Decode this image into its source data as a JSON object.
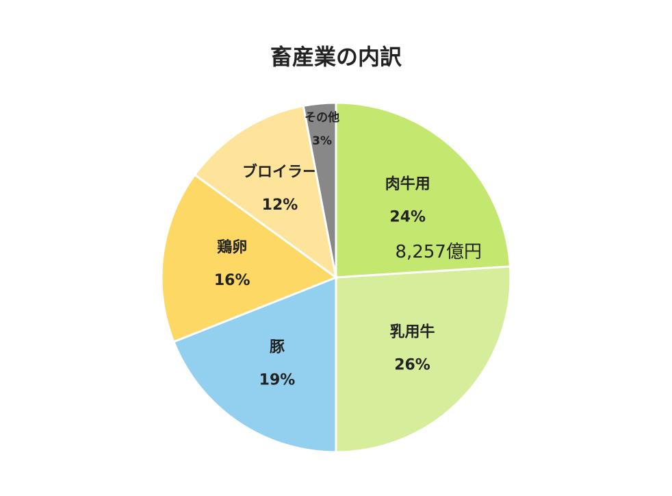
{
  "chart_data": {
    "type": "pie",
    "title": "畜産業の内訳",
    "categories": [
      "肉牛用",
      "乳用牛",
      "豚",
      "鶏卵",
      "ブロイラー",
      "その他"
    ],
    "values": [
      24,
      26,
      19,
      16,
      12,
      3
    ],
    "value_labels": [
      "24%",
      "26%",
      "19%",
      "16%",
      "12%",
      "3%"
    ],
    "colors": [
      "#c3e76f",
      "#d6ee9c",
      "#93d0f0",
      "#fdd865",
      "#fde49a",
      "#888888"
    ],
    "annotation": "8,257億円"
  }
}
